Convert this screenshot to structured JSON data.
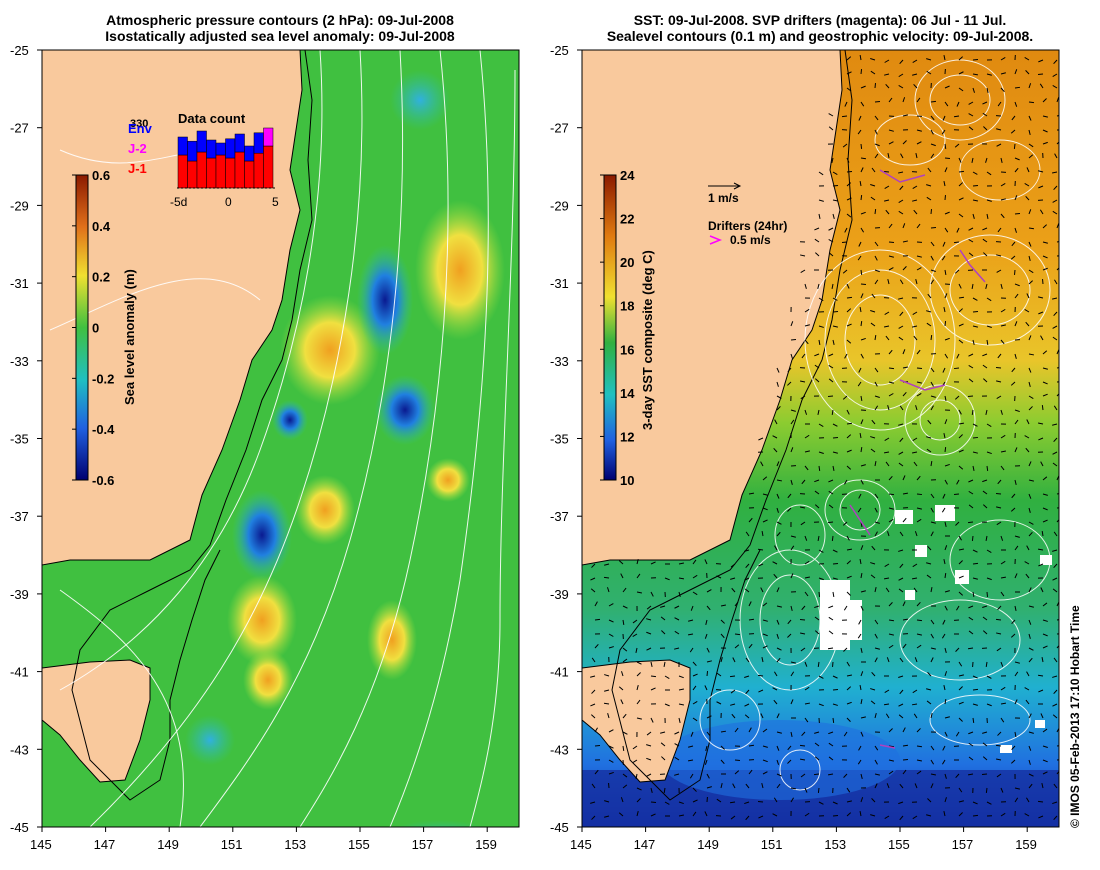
{
  "left_panel": {
    "title_line1": "Atmospheric pressure contours (2 hPa): 09-Jul-2008",
    "title_line2": "Isostatically adjusted sea level anomaly: 09-Jul-2008",
    "y_ticks": [
      "-25",
      "-27",
      "-29",
      "-31",
      "-33",
      "-35",
      "-37",
      "-39",
      "-41",
      "-43",
      "-45"
    ],
    "x_ticks": [
      "145",
      "147",
      "149",
      "151",
      "153",
      "155",
      "157",
      "159"
    ],
    "colorbar": {
      "label": "Sea level anomaly (m)",
      "ticks": [
        "0.6",
        "0.4",
        "0.2",
        "0",
        "-0.2",
        "-0.4",
        "-0.6"
      ]
    },
    "data_count": {
      "title": "Data count",
      "max_label": "330",
      "legend": [
        "Env",
        "J-2",
        "J-1"
      ],
      "x_ticks": [
        "-5d",
        "0",
        "5"
      ],
      "colors": {
        "env": "#0000ff",
        "j2": "#ff00ff",
        "j1": "#ff0000"
      }
    }
  },
  "right_panel": {
    "title_line1": "SST: 09-Jul-2008. SVP drifters (magenta): 06 Jul - 11 Jul.",
    "title_line2": "Sealevel contours (0.1 m) and geostrophic velocity: 09-Jul-2008.",
    "y_ticks": [
      "-25",
      "-27",
      "-29",
      "-31",
      "-33",
      "-35",
      "-37",
      "-39",
      "-41",
      "-43",
      "-45"
    ],
    "x_ticks": [
      "145",
      "147",
      "149",
      "151",
      "153",
      "155",
      "157",
      "159"
    ],
    "colorbar": {
      "label": "3-day SST composite (deg C)",
      "ticks": [
        "24",
        "22",
        "20",
        "18",
        "16",
        "14",
        "12",
        "10"
      ]
    },
    "velocity_scale": "1 m/s",
    "drifters_label": "Drifters (24hr)",
    "drifters_scale": "0.5 m/s"
  },
  "credit": "© IMOS 05-Feb-2013 17:10 Hobart Time",
  "colors": {
    "land": "#f9c99d",
    "ocean_green": "#33cc33",
    "bg": "#ffffff"
  }
}
